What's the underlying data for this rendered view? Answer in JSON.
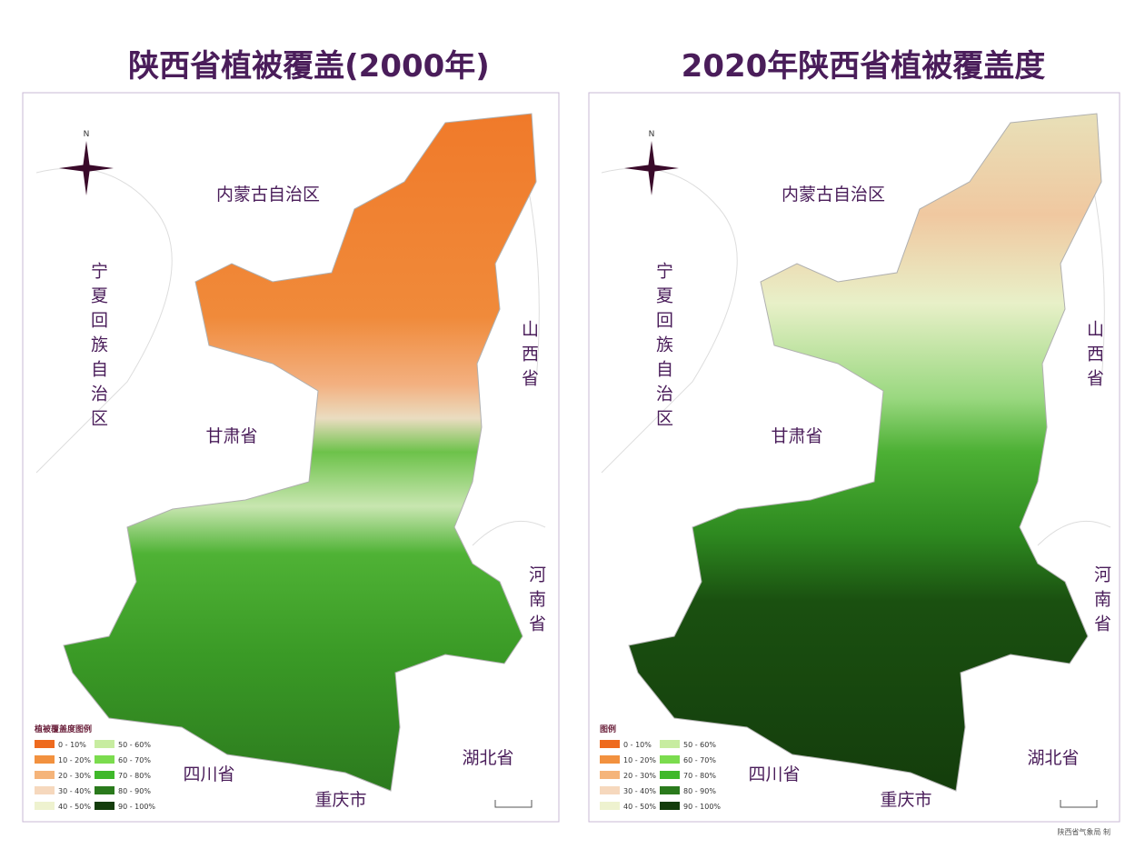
{
  "panels": [
    {
      "title": "陕西省植被覆盖(2000年)",
      "labels": {
        "inner_mongolia": "内蒙古自治区",
        "ningxia": "宁夏回族自治区",
        "shanxi": "山西省",
        "gansu": "甘肃省",
        "henan": "河南省",
        "sichuan": "四川省",
        "hubei": "湖北省",
        "chongqing": "重庆市"
      },
      "north": "N",
      "legend": {
        "title": "植被覆盖度图例",
        "items": [
          {
            "label": "0 - 10%",
            "color": "#ee6a1e"
          },
          {
            "label": "10 - 20%",
            "color": "#f2913f"
          },
          {
            "label": "20 - 30%",
            "color": "#f5b47a"
          },
          {
            "label": "30 - 40%",
            "color": "#f6d8bd"
          },
          {
            "label": "40 - 50%",
            "color": "#eef2cf"
          },
          {
            "label": "50 - 60%",
            "color": "#c7eca0"
          },
          {
            "label": "60 - 70%",
            "color": "#7bdc4e"
          },
          {
            "label": "70 - 80%",
            "color": "#3fb82a"
          },
          {
            "label": "80 - 90%",
            "color": "#2a7a1c"
          },
          {
            "label": "90 - 100%",
            "color": "#143d0c"
          }
        ]
      }
    },
    {
      "title": "2020年陕西省植被覆盖度",
      "labels": {
        "inner_mongolia": "内蒙古自治区",
        "ningxia": "宁夏回族自治区",
        "shanxi": "山西省",
        "gansu": "甘肃省",
        "henan": "河南省",
        "sichuan": "四川省",
        "hubei": "湖北省",
        "chongqing": "重庆市"
      },
      "north": "N",
      "legend": {
        "title": "图例",
        "items": [
          {
            "label": "0 - 10%",
            "color": "#ee6a1e"
          },
          {
            "label": "10 - 20%",
            "color": "#f2913f"
          },
          {
            "label": "20 - 30%",
            "color": "#f5b47a"
          },
          {
            "label": "30 - 40%",
            "color": "#f6d8bd"
          },
          {
            "label": "40 - 50%",
            "color": "#eef2cf"
          },
          {
            "label": "50 - 60%",
            "color": "#c7eca0"
          },
          {
            "label": "60 - 70%",
            "color": "#7bdc4e"
          },
          {
            "label": "70 - 80%",
            "color": "#3fb82a"
          },
          {
            "label": "80 - 90%",
            "color": "#2a7a1c"
          },
          {
            "label": "90 - 100%",
            "color": "#143d0c"
          }
        ]
      },
      "credit": "陕西省气象局 制"
    }
  ]
}
